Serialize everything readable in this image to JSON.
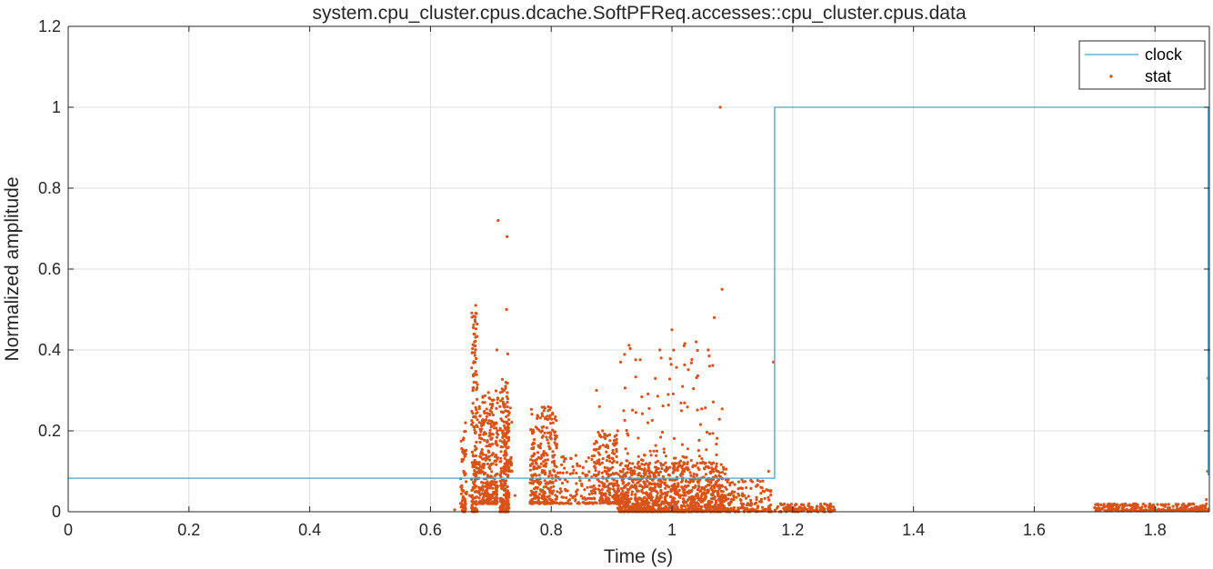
{
  "chart_data": {
    "type": "line",
    "title": "system.cpu_cluster.cpus.dcache.SoftPFReq.accesses::cpu_cluster.cpus.data",
    "xlabel": "Time (s)",
    "ylabel": "Normalized amplitude",
    "xlim": [
      0,
      1.89
    ],
    "ylim": [
      0,
      1.2
    ],
    "x_ticks": [
      0,
      0.2,
      0.4,
      0.6,
      0.8,
      1,
      1.2,
      1.4,
      1.6,
      1.8
    ],
    "x_tick_labels": [
      "0",
      "0.2",
      "0.4",
      "0.6",
      "0.8",
      "1",
      "1.2",
      "1.4",
      "1.6",
      "1.8"
    ],
    "y_ticks": [
      0,
      0.2,
      0.4,
      0.6,
      0.8,
      1,
      1.2
    ],
    "y_tick_labels": [
      "0",
      "0.2",
      "0.4",
      "0.6",
      "0.8",
      "1",
      "1.2"
    ],
    "grid": true,
    "legend_position": "top-right",
    "series": [
      {
        "name": "clock",
        "style": "step-line",
        "color": "#4aa3c8",
        "points": [
          [
            0,
            0.083
          ],
          [
            1.17,
            0.083
          ],
          [
            1.17,
            1.0
          ],
          [
            1.888,
            1.0
          ],
          [
            1.888,
            0.09
          ]
        ]
      },
      {
        "name": "stat",
        "style": "dots",
        "color": "#d95319",
        "points": [
          [
            0.64,
            0.005
          ],
          [
            0.65,
            0.02
          ],
          [
            0.652,
            0.06
          ],
          [
            0.655,
            0.1
          ],
          [
            0.656,
            0.15
          ],
          [
            0.658,
            0.22
          ],
          [
            0.665,
            0.04
          ],
          [
            0.668,
            0.08
          ],
          [
            0.67,
            0.22
          ],
          [
            0.672,
            0.32
          ],
          [
            0.673,
            0.41
          ],
          [
            0.674,
            0.47
          ],
          [
            0.675,
            0.51
          ],
          [
            0.676,
            0.49
          ],
          [
            0.68,
            0.1
          ],
          [
            0.685,
            0.18
          ],
          [
            0.69,
            0.27
          ],
          [
            0.695,
            0.22
          ],
          [
            0.7,
            0.18
          ],
          [
            0.705,
            0.22
          ],
          [
            0.71,
            0.4
          ],
          [
            0.712,
            0.72
          ],
          [
            0.715,
            0.26
          ],
          [
            0.72,
            0.2
          ],
          [
            0.722,
            0.3
          ],
          [
            0.725,
            0.32
          ],
          [
            0.726,
            0.5
          ],
          [
            0.727,
            0.68
          ],
          [
            0.728,
            0.39
          ],
          [
            0.73,
            0.2
          ],
          [
            0.735,
            0.1
          ],
          [
            0.74,
            0.04
          ],
          [
            0.77,
            0.07
          ],
          [
            0.775,
            0.12
          ],
          [
            0.78,
            0.16
          ],
          [
            0.785,
            0.2
          ],
          [
            0.79,
            0.23
          ],
          [
            0.795,
            0.25
          ],
          [
            0.8,
            0.18
          ],
          [
            0.805,
            0.1
          ],
          [
            0.81,
            0.05
          ],
          [
            0.82,
            0.02
          ],
          [
            0.84,
            0.03
          ],
          [
            0.86,
            0.06
          ],
          [
            0.875,
            0.3
          ],
          [
            0.88,
            0.26
          ],
          [
            0.885,
            0.2
          ],
          [
            0.89,
            0.1
          ],
          [
            0.9,
            0.07
          ],
          [
            0.91,
            0.2
          ],
          [
            0.915,
            0.37
          ],
          [
            0.92,
            0.25
          ],
          [
            0.93,
            0.12
          ],
          [
            0.94,
            0.08
          ],
          [
            0.95,
            0.05
          ],
          [
            0.96,
            0.22
          ],
          [
            0.97,
            0.15
          ],
          [
            0.98,
            0.4
          ],
          [
            0.99,
            0.1
          ],
          [
            1.0,
            0.45
          ],
          [
            1.01,
            0.07
          ],
          [
            1.02,
            0.41
          ],
          [
            1.03,
            0.08
          ],
          [
            1.04,
            0.42
          ],
          [
            1.05,
            0.06
          ],
          [
            1.06,
            0.4
          ],
          [
            1.07,
            0.48
          ],
          [
            1.075,
            0.1
          ],
          [
            1.08,
            1.0
          ],
          [
            1.083,
            0.55
          ],
          [
            1.09,
            0.08
          ],
          [
            1.1,
            0.05
          ],
          [
            1.12,
            0.04
          ],
          [
            1.14,
            0.03
          ],
          [
            1.16,
            0.1
          ],
          [
            1.168,
            0.37
          ],
          [
            1.18,
            0.02
          ],
          [
            1.2,
            0.01
          ],
          [
            1.22,
            0.01
          ],
          [
            1.25,
            0.01
          ],
          [
            1.7,
            0.01
          ],
          [
            1.75,
            0.015
          ],
          [
            1.8,
            0.01
          ],
          [
            1.85,
            0.015
          ],
          [
            1.885,
            0.03
          ],
          [
            1.887,
            0.1
          ],
          [
            1.888,
            0.33
          ],
          [
            1.889,
            0.4
          ]
        ],
        "clusters": [
          {
            "x": [
              0.65,
              0.66
            ],
            "y": [
              0,
              0.2
            ],
            "n": 60
          },
          {
            "x": [
              0.668,
              0.678
            ],
            "y": [
              0,
              0.5
            ],
            "n": 160
          },
          {
            "x": [
              0.68,
              0.712
            ],
            "y": [
              0.02,
              0.3
            ],
            "n": 320
          },
          {
            "x": [
              0.715,
              0.73
            ],
            "y": [
              0,
              0.33
            ],
            "n": 200
          },
          {
            "x": [
              0.72,
              0.735
            ],
            "y": [
              0.1,
              0.26
            ],
            "n": 60
          },
          {
            "x": [
              0.765,
              0.81
            ],
            "y": [
              0.02,
              0.26
            ],
            "n": 300
          },
          {
            "x": [
              0.81,
              0.87
            ],
            "y": [
              0.02,
              0.14
            ],
            "n": 100
          },
          {
            "x": [
              0.87,
              0.91
            ],
            "y": [
              0.02,
              0.2
            ],
            "n": 220
          },
          {
            "x": [
              0.91,
              1.09
            ],
            "y": [
              0,
              0.12
            ],
            "n": 1100
          },
          {
            "x": [
              0.92,
              1.085
            ],
            "y": [
              0.12,
              0.42
            ],
            "n": 110
          },
          {
            "x": [
              1.09,
              1.165
            ],
            "y": [
              0,
              0.08
            ],
            "n": 160
          },
          {
            "x": [
              1.17,
              1.27
            ],
            "y": [
              0,
              0.02
            ],
            "n": 120
          },
          {
            "x": [
              1.7,
              1.89
            ],
            "y": [
              0.002,
              0.02
            ],
            "n": 260
          }
        ]
      }
    ]
  }
}
